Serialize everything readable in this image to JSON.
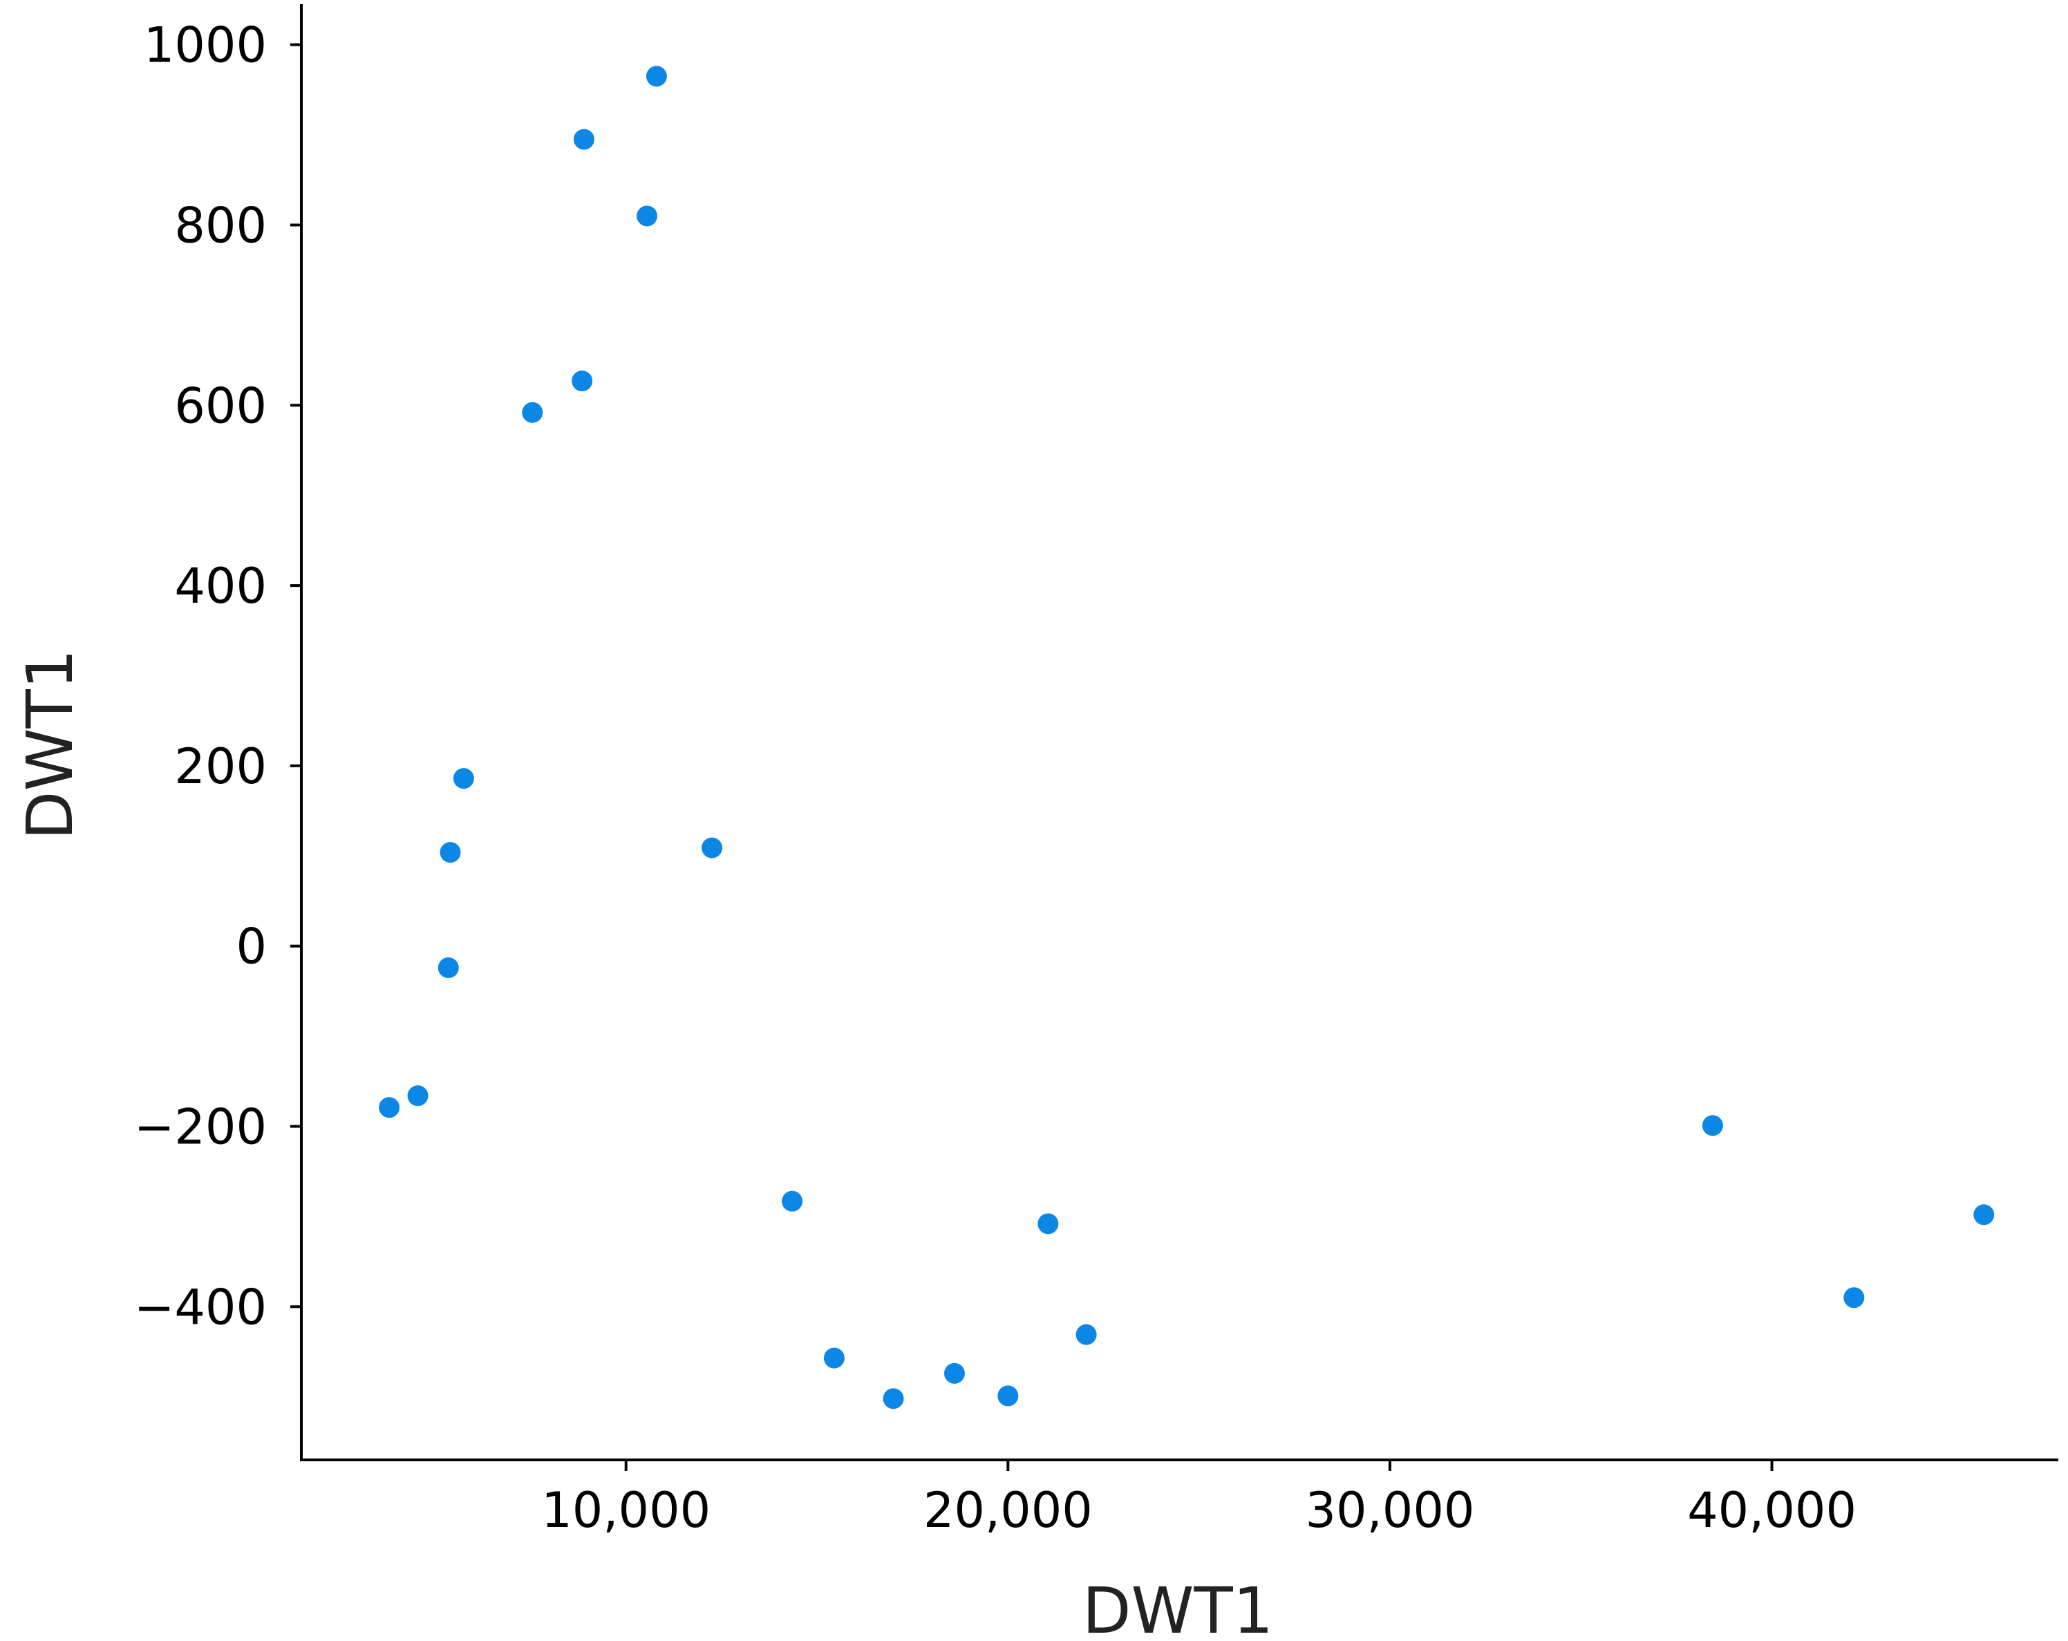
{
  "chart_data": {
    "type": "scatter",
    "title": "",
    "xlabel": "DWT1",
    "ylabel": "DWT1",
    "xlim": [
      1500,
      47500
    ],
    "ylim": [
      -570,
      1045
    ],
    "x_ticks": [
      10000,
      20000,
      30000,
      40000
    ],
    "x_tick_labels": [
      "10,000",
      "20,000",
      "30,000",
      "40,000"
    ],
    "y_ticks": [
      1000,
      800,
      600,
      400,
      200,
      0,
      -200,
      -400
    ],
    "y_tick_labels": [
      "1000",
      "800",
      "600",
      "400",
      "200",
      "0",
      "−200",
      "−400"
    ],
    "grid": false,
    "marker_color": "#0d87e6",
    "series": [
      {
        "points": [
          {
            "x": 10800,
            "y": 965
          },
          {
            "x": 8900,
            "y": 895
          },
          {
            "x": 10550,
            "y": 810
          },
          {
            "x": 8850,
            "y": 627
          },
          {
            "x": 7550,
            "y": 592
          },
          {
            "x": 5750,
            "y": 186
          },
          {
            "x": 5400,
            "y": 104
          },
          {
            "x": 12250,
            "y": 109
          },
          {
            "x": 5350,
            "y": -24
          },
          {
            "x": 3800,
            "y": -179
          },
          {
            "x": 4550,
            "y": -166
          },
          {
            "x": 14350,
            "y": -283
          },
          {
            "x": 15450,
            "y": -457
          },
          {
            "x": 17000,
            "y": -502
          },
          {
            "x": 18600,
            "y": -474
          },
          {
            "x": 20000,
            "y": -499
          },
          {
            "x": 21050,
            "y": -308
          },
          {
            "x": 22050,
            "y": -431
          },
          {
            "x": 38450,
            "y": -199
          },
          {
            "x": 42150,
            "y": -390
          },
          {
            "x": 45550,
            "y": -298
          }
        ]
      }
    ]
  }
}
